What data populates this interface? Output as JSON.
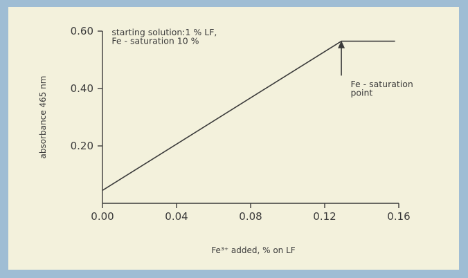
{
  "chart_data": {
    "type": "line",
    "xlabel": "Fe³⁺ added, % on LF",
    "ylabel": "absorbance 465 nm",
    "xlim": [
      0,
      0.16
    ],
    "ylim": [
      0,
      0.6
    ],
    "x_ticks": [
      "0.00",
      "0.04",
      "0.08",
      "0.12",
      "0.16"
    ],
    "y_ticks": [
      "0.20",
      "0.40",
      "0.60"
    ],
    "grid": false,
    "series": [
      {
        "x": [
          0.0,
          0.129,
          0.158
        ],
        "y": [
          0.045,
          0.565,
          0.565
        ]
      }
    ],
    "annotations": [
      {
        "text": "starting solution:1 % LF,",
        "x": 0.005,
        "y": 0.585
      },
      {
        "text": "Fe - saturation 10 %",
        "x": 0.005,
        "y": 0.555
      },
      {
        "text": "Fe - saturation",
        "x": 0.134,
        "y": 0.405
      },
      {
        "text": "point",
        "x": 0.134,
        "y": 0.375
      }
    ],
    "arrow": {
      "x": 0.129,
      "y_from": 0.445,
      "y_to": 0.567
    }
  },
  "colors": {
    "frame": "#9fbdd4",
    "panel": "#f3f1dc",
    "line": "#3a3a3a"
  }
}
